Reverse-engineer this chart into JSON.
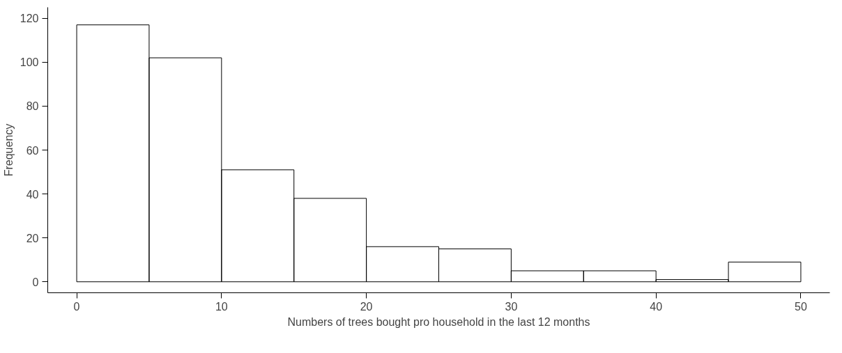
{
  "chart_data": {
    "type": "histogram",
    "xlabel": "Numbers of trees bought pro household in the last 12 months",
    "ylabel": "Frequency",
    "bins": [
      0,
      5,
      10,
      15,
      20,
      25,
      30,
      35,
      40,
      45,
      50
    ],
    "values": [
      117,
      102,
      51,
      38,
      16,
      15,
      5,
      5,
      1,
      9
    ],
    "xlim": [
      -2,
      52
    ],
    "ylim": [
      -5,
      125
    ],
    "xticks": [
      0,
      10,
      20,
      30,
      40,
      50
    ],
    "yticks": [
      0,
      20,
      40,
      60,
      80,
      100,
      120
    ],
    "grid": false
  }
}
